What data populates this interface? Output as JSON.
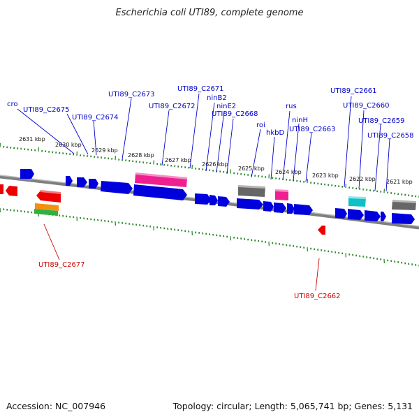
{
  "title": "Escherichia coli UTI89, complete genome",
  "footer": {
    "accession": "Accession: NC_007946",
    "stats": "Topology: circular; Length: 5,065,741 bp; Genes: 5,131"
  },
  "colors": {
    "backbone": "#7f7f7f",
    "tick": "#2e8b2e",
    "forward_gene": "#0000dd",
    "reverse_gene": "#ee0000",
    "forward_label": "#0000cc",
    "reverse_label": "#cc0000",
    "pink_feature": "#ee2090",
    "gray_feature": "#666666",
    "cyan_feature": "#10c0c8",
    "orange_feature": "#f39010",
    "green_feature": "#30b040"
  },
  "kbp_labels": [
    "2631 kbp",
    "2630 kbp",
    "2629 kbp",
    "2628 kbp",
    "2627 kbp",
    "2626 kbp",
    "2625 kbp",
    "2624 kbp",
    "2623 kbp",
    "2622 kbp",
    "2621 kbp"
  ],
  "gene_labels_top": [
    "cro",
    "UTI89_C2675",
    "UTI89_C2674",
    "UTI89_C2673",
    "UTI89_C2672",
    "UTI89_C2671",
    "ninB2",
    "ninE2",
    "UTI89_C2668",
    "roi",
    "hkbD",
    "rus",
    "ninH",
    "UTI89_C2663",
    "UTI89_C2661",
    "UTI89_C2660",
    "UTI89_C2659",
    "UTI89_C2658"
  ],
  "gene_labels_bottom": [
    "UTI89_C2677",
    "UTI89_C2662"
  ]
}
